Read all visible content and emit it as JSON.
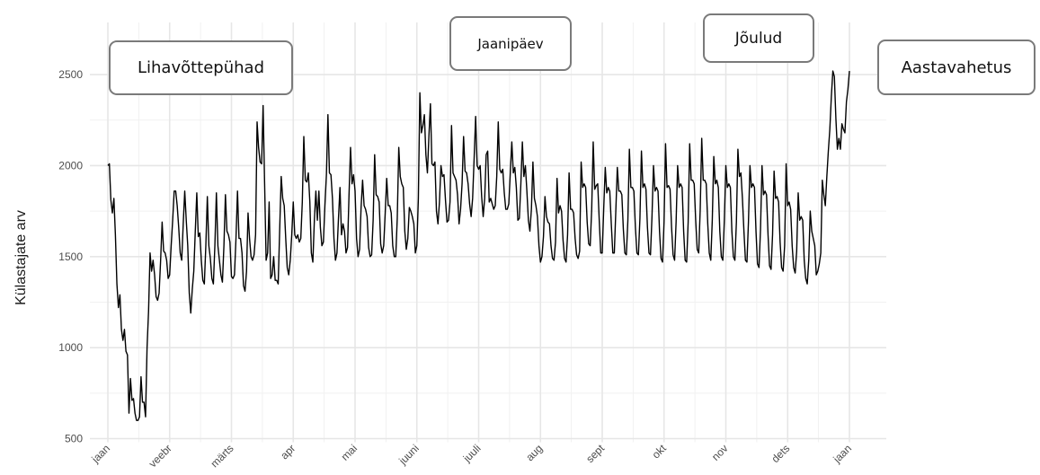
{
  "chart_data": {
    "type": "line",
    "title": "",
    "xlabel": "",
    "ylabel": "Külastajate arv",
    "ylim": [
      500,
      2550
    ],
    "yticks": [
      500,
      1000,
      1500,
      2000,
      2500
    ],
    "xticks": [
      "jaan",
      "veebr",
      "märts",
      "apr",
      "mai",
      "juuni",
      "juuli",
      "aug",
      "sept",
      "okt",
      "nov",
      "dets",
      "jaan"
    ],
    "grid": true,
    "annotations": [
      "Lihavõttepühad",
      "Jaanipäev",
      "Jõulud",
      "Aastavahetus"
    ],
    "series": [
      {
        "values": [
          2000,
          2010,
          1810,
          1740,
          1820,
          1620,
          1350,
          1220,
          1290,
          1100,
          1040,
          1100,
          980,
          960,
          640,
          830,
          710,
          720,
          640,
          600,
          600,
          620,
          840,
          700,
          700,
          620,
          1000,
          1200,
          1520,
          1420,
          1480,
          1400,
          1280,
          1260,
          1300,
          1480,
          1690,
          1530,
          1520,
          1480,
          1380,
          1400,
          1560,
          1700,
          1860,
          1860,
          1780,
          1660,
          1520,
          1480,
          1680,
          1860,
          1700,
          1560,
          1300,
          1190,
          1320,
          1420,
          1640,
          1850,
          1610,
          1630,
          1480,
          1370,
          1350,
          1560,
          1830,
          1560,
          1490,
          1380,
          1350,
          1560,
          1850,
          1560,
          1480,
          1400,
          1360,
          1560,
          1840,
          1640,
          1620,
          1580,
          1390,
          1380,
          1400,
          1600,
          1860,
          1600,
          1600,
          1520,
          1340,
          1310,
          1420,
          1740,
          1600,
          1500,
          1480,
          1510,
          1620,
          2240,
          2100,
          2020,
          2010,
          2330,
          1900,
          1480,
          1520,
          1800,
          1380,
          1400,
          1500,
          1370,
          1370,
          1350,
          1650,
          1940,
          1820,
          1780,
          1600,
          1440,
          1400,
          1480,
          1620,
          1800,
          1620,
          1600,
          1620,
          1580,
          1600,
          1800,
          2160,
          1920,
          1910,
          1960,
          1800,
          1520,
          1470,
          1700,
          1860,
          1700,
          1860,
          1660,
          1560,
          1580,
          1780,
          1950,
          2280,
          1960,
          1950,
          1820,
          1600,
          1480,
          1520,
          1710,
          1880,
          1620,
          1680,
          1640,
          1520,
          1550,
          1840,
          2100,
          1900,
          1950,
          1860,
          1600,
          1500,
          1540,
          1770,
          1920,
          1780,
          1760,
          1720,
          1550,
          1500,
          1510,
          1700,
          2060,
          1840,
          1830,
          1800,
          1570,
          1520,
          1560,
          1740,
          1930,
          1780,
          1780,
          1740,
          1560,
          1500,
          1500,
          1710,
          2100,
          1940,
          1900,
          1880,
          1640,
          1540,
          1600,
          1770,
          1750,
          1720,
          1680,
          1520,
          1560,
          1820,
          2400,
          2180,
          2220,
          2280,
          2060,
          1960,
          2160,
          2340,
          2010,
          2000,
          2020,
          1750,
          1680,
          1800,
          2000,
          1940,
          1950,
          1810,
          1690,
          1700,
          1800,
          2220,
          1960,
          1940,
          1920,
          1840,
          1680,
          1760,
          1900,
          2160,
          1970,
          1960,
          1900,
          1790,
          1720,
          1820,
          2040,
          2270,
          2000,
          1980,
          2000,
          1830,
          1720,
          1820,
          2060,
          2080,
          1800,
          1820,
          1790,
          1760,
          1780,
          1940,
          2240,
          1980,
          1960,
          1980,
          1850,
          1760,
          1760,
          1790,
          1960,
          2130,
          1960,
          1990,
          1880,
          1700,
          1710,
          1900,
          2130,
          1940,
          2000,
          1860,
          1700,
          1640,
          1760,
          2020,
          1820,
          1780,
          1720,
          1560,
          1470,
          1500,
          1610,
          1830,
          1720,
          1690,
          1680,
          1560,
          1490,
          1480,
          1580,
          1930,
          1740,
          1780,
          1750,
          1590,
          1490,
          1470,
          1620,
          1960,
          1760,
          1760,
          1740,
          1600,
          1510,
          1490,
          1530,
          2020,
          1880,
          1900,
          1880,
          1690,
          1570,
          1560,
          1760,
          2130,
          1870,
          1890,
          1900,
          1700,
          1520,
          1520,
          1770,
          1990,
          1850,
          1880,
          1860,
          1680,
          1520,
          1520,
          1750,
          1990,
          1860,
          1860,
          1840,
          1650,
          1520,
          1510,
          1700,
          2090,
          1880,
          1880,
          1860,
          1660,
          1520,
          1510,
          1710,
          2080,
          1880,
          1900,
          1870,
          1660,
          1520,
          1510,
          1720,
          2000,
          1860,
          1880,
          1860,
          1640,
          1490,
          1470,
          1690,
          2120,
          1880,
          1890,
          1870,
          1660,
          1510,
          1480,
          1690,
          2000,
          1880,
          1900,
          1880,
          1640,
          1480,
          1470,
          1690,
          2120,
          1920,
          1920,
          1900,
          1700,
          1540,
          1520,
          1760,
          2150,
          1920,
          1920,
          1900,
          1680,
          1520,
          1480,
          1700,
          2050,
          1900,
          1920,
          1880,
          1640,
          1500,
          1480,
          1700,
          2000,
          1880,
          1900,
          1880,
          1640,
          1500,
          1480,
          1690,
          2090,
          1940,
          1960,
          1820,
          1640,
          1480,
          1470,
          1690,
          2000,
          1880,
          1900,
          1880,
          1640,
          1460,
          1440,
          1650,
          2000,
          1840,
          1860,
          1840,
          1620,
          1450,
          1430,
          1620,
          1970,
          1820,
          1830,
          1800,
          1580,
          1440,
          1420,
          1560,
          2010,
          1780,
          1800,
          1760,
          1560,
          1440,
          1410,
          1530,
          1850,
          1700,
          1720,
          1700,
          1480,
          1380,
          1350,
          1480,
          1750,
          1640,
          1600,
          1560,
          1400,
          1420,
          1460,
          1520,
          1920,
          1840,
          1780,
          1940,
          2080,
          2200,
          2380,
          2520,
          2490,
          2260,
          2090,
          2150,
          2090,
          2230,
          2200,
          2180,
          2350,
          2420,
          2520
        ]
      }
    ]
  }
}
